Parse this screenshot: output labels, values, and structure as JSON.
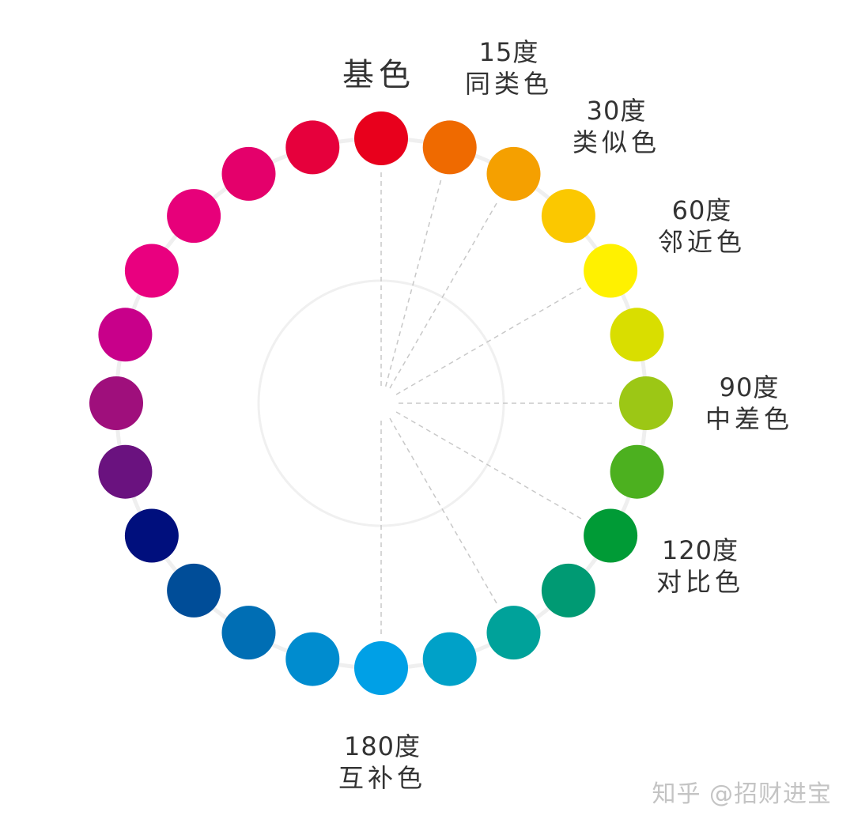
{
  "title": "基色",
  "colors": [
    "#e8001c",
    "#ef6a00",
    "#f5a000",
    "#fbc800",
    "#fff100",
    "#d9de00",
    "#9cc715",
    "#4cb01f",
    "#009b36",
    "#009a73",
    "#00a29a",
    "#00a1c8",
    "#00a0e6",
    "#008ccf",
    "#006eb4",
    "#004d98",
    "#000f7d",
    "#6a127f",
    "#9f0f7c",
    "#c8008a",
    "#e9007f",
    "#e7007a",
    "#e4006b",
    "#e6003c"
  ],
  "guide_steps": [
    0,
    1,
    2,
    4,
    6,
    8,
    10,
    12
  ],
  "labels": [
    {
      "step": 1,
      "degree": "15度",
      "name": "同类色"
    },
    {
      "step": 2,
      "degree": "30度",
      "name": "类似色"
    },
    {
      "step": 4,
      "degree": "60度",
      "name": "邻近色"
    },
    {
      "step": 6,
      "degree": "90度",
      "name": "中差色"
    },
    {
      "step": 8,
      "degree": "120度",
      "name": "对比色"
    },
    {
      "step": 12,
      "degree": "180度",
      "name": "互补色"
    }
  ],
  "watermark": "知乎 @招财进宝"
}
